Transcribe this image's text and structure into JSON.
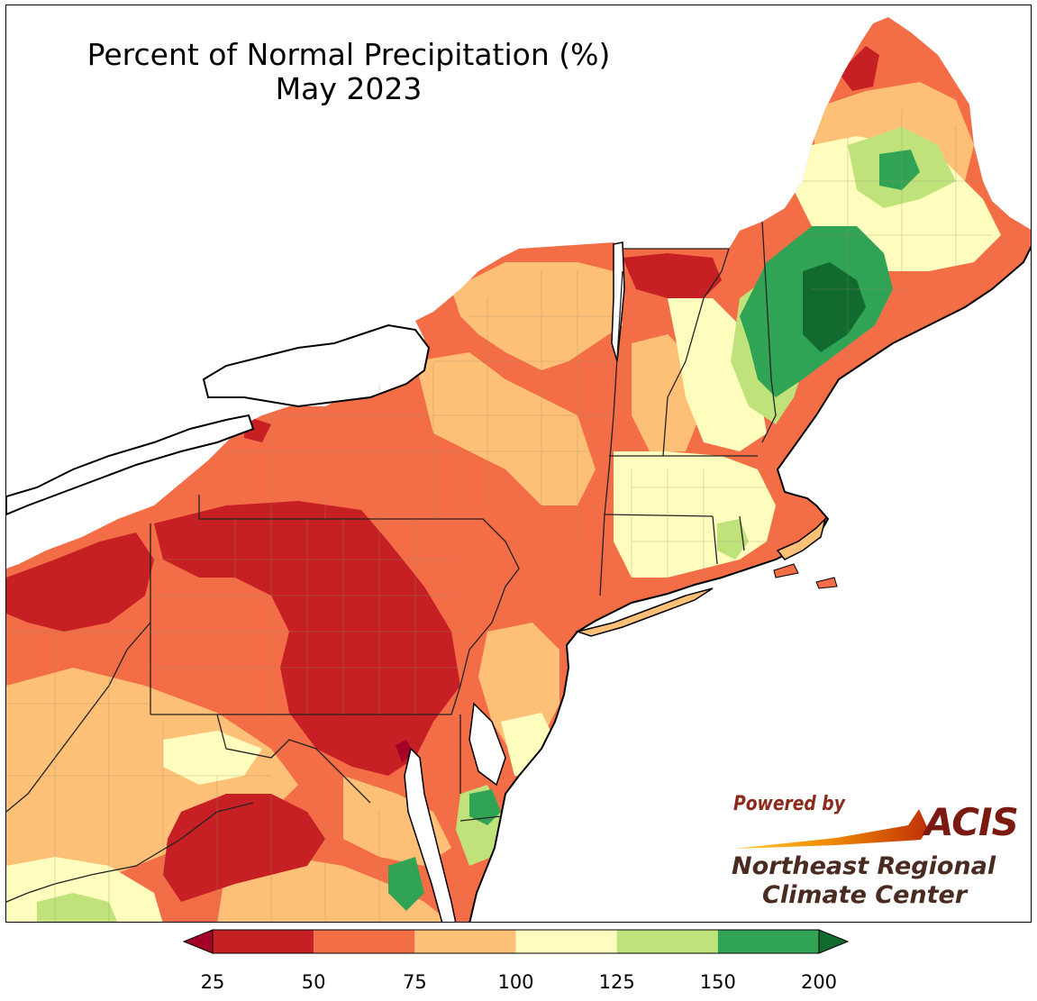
{
  "title": {
    "line1": "Percent of Normal Precipitation (%)",
    "line2": "May 2023"
  },
  "legend": {
    "bins": [
      {
        "from": 25,
        "to": 50,
        "color": "#c62025"
      },
      {
        "from": 50,
        "to": 75,
        "color": "#f36e46"
      },
      {
        "from": 75,
        "to": 100,
        "color": "#fec076"
      },
      {
        "from": 100,
        "to": 125,
        "color": "#fefdbd"
      },
      {
        "from": 125,
        "to": 150,
        "color": "#bfe37a"
      },
      {
        "from": 150,
        "to": 200,
        "color": "#31a354"
      }
    ],
    "under_color": "#a50026",
    "over_color": "#116b2f",
    "ticks": [
      "25",
      "50",
      "75",
      "100",
      "125",
      "150",
      "200"
    ]
  },
  "logo": {
    "powered_by": "Powered by",
    "acis": "ACIS",
    "org_line1": "Northeast Regional",
    "org_line2": "Climate Center"
  },
  "colors": {
    "lake": "#ffffff",
    "ocean": "#ffffff",
    "state_border": "#222222",
    "county_border": "#9a8a6a"
  }
}
